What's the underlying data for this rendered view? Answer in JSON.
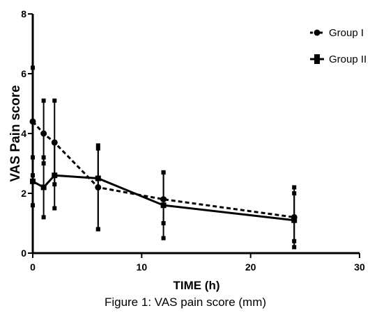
{
  "chart_data": {
    "type": "line",
    "xlabel": "TIME (h)",
    "ylabel": "VAS Pain score",
    "xlim": [
      0,
      30
    ],
    "ylim": [
      0,
      8
    ],
    "x_ticks": [
      0,
      10,
      20,
      30
    ],
    "y_ticks": [
      0,
      2,
      4,
      6,
      8
    ],
    "legend_position": "top-right",
    "grid": false,
    "series": [
      {
        "name": "Group I",
        "line_style": "dashed",
        "marker": "circle",
        "color": "#000000",
        "x": [
          0,
          1,
          2,
          6,
          12,
          24
        ],
        "y": [
          4.4,
          4.0,
          3.7,
          2.2,
          1.8,
          1.2
        ],
        "err_low": [
          2.6,
          3.0,
          2.3,
          0.8,
          1.0,
          0.4
        ],
        "err_high": [
          6.2,
          5.1,
          5.1,
          3.6,
          2.7,
          2.2
        ]
      },
      {
        "name": "Group II",
        "line_style": "solid",
        "marker": "square",
        "color": "#000000",
        "x": [
          0,
          1,
          2,
          6,
          12,
          24
        ],
        "y": [
          2.4,
          2.2,
          2.6,
          2.5,
          1.6,
          1.1
        ],
        "err_low": [
          1.6,
          1.2,
          1.5,
          0.8,
          0.5,
          0.2
        ],
        "err_high": [
          3.2,
          3.2,
          3.7,
          3.5,
          2.7,
          2.0
        ]
      }
    ]
  },
  "caption": "Figure 1: VAS pain score (mm)"
}
